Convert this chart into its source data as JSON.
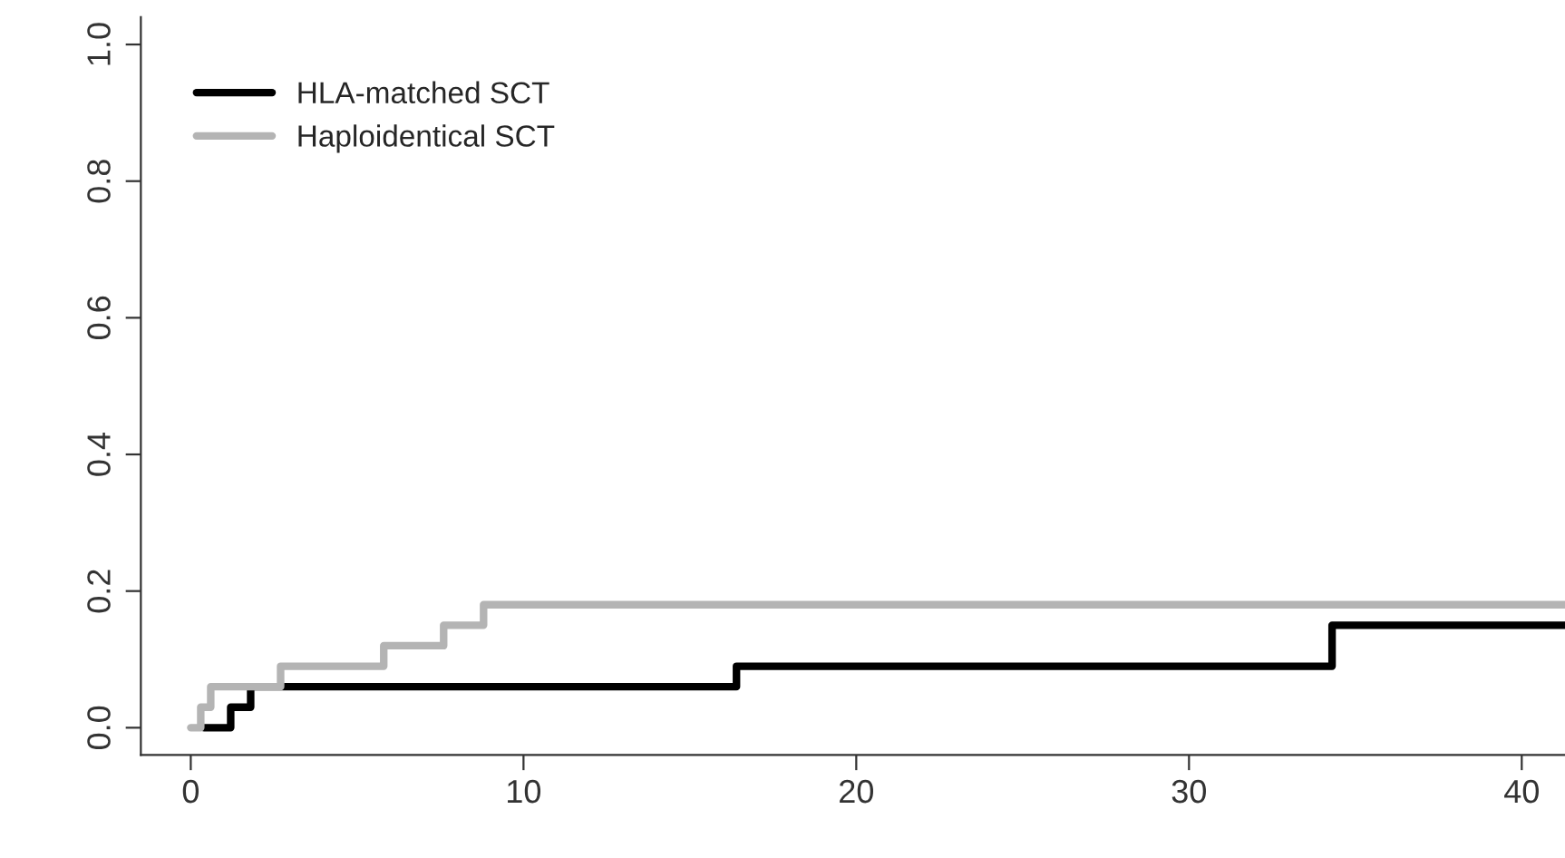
{
  "chart_data": {
    "type": "step",
    "xlim": [
      -1.5,
      41.3
    ],
    "ylim": [
      -0.04,
      1.04
    ],
    "xticks": [
      0,
      10,
      20,
      30,
      40
    ],
    "yticks": [
      {
        "value": 0,
        "label": "0.0"
      },
      {
        "value": 0.2,
        "label": "0.2"
      },
      {
        "value": 0.4,
        "label": "0.4"
      },
      {
        "value": 0.6,
        "label": "0.6"
      },
      {
        "value": 0.8,
        "label": "0.8"
      },
      {
        "value": 1,
        "label": "1.0"
      }
    ],
    "legend": "top left",
    "grid": false,
    "series": [
      {
        "name": "HLA-matched SCT",
        "color": "#000000",
        "x": [
          0.4,
          1.2,
          1.8,
          16.4,
          34.3,
          41.3
        ],
        "values": [
          0,
          0.03,
          0.06,
          0.09,
          0.15,
          0.15
        ]
      },
      {
        "name": "Haploidentical SCT",
        "color": "#b4b4b4",
        "x": [
          0,
          0.3,
          0.6,
          2.7,
          5.8,
          7.6,
          8.8,
          41.3
        ],
        "values": [
          0,
          0.03,
          0.06,
          0.09,
          0.12,
          0.15,
          0.18,
          0.18
        ]
      }
    ]
  }
}
